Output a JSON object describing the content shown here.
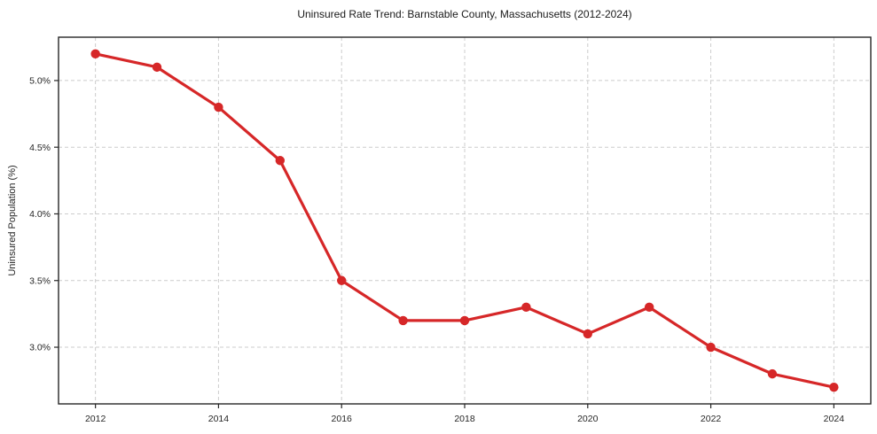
{
  "chart_data": {
    "type": "line",
    "title": "Uninsured Rate Trend: Barnstable County, Massachusetts (2012-2024)",
    "xlabel": "",
    "ylabel": "Uninsured Population (%)",
    "x": [
      2012,
      2013,
      2014,
      2015,
      2016,
      2017,
      2018,
      2019,
      2020,
      2021,
      2022,
      2023,
      2024
    ],
    "values": [
      5.2,
      5.1,
      4.8,
      4.4,
      3.5,
      3.2,
      3.2,
      3.3,
      3.1,
      3.3,
      3.0,
      2.8,
      2.7
    ],
    "xlim": [
      2011.4,
      2024.6
    ],
    "ylim": [
      2.575,
      5.325
    ],
    "x_ticks": {
      "values": [
        2012,
        2014,
        2016,
        2018,
        2020,
        2022,
        2024
      ],
      "labels": [
        "2012",
        "2014",
        "2016",
        "2018",
        "2020",
        "2022",
        "2024"
      ]
    },
    "y_ticks": {
      "values": [
        3.0,
        3.5,
        4.0,
        4.5,
        5.0
      ],
      "labels": [
        "3.0%",
        "3.5%",
        "4.0%",
        "4.5%",
        "5.0%"
      ]
    },
    "grid": {
      "visible": true,
      "style": "dashed",
      "axes": "both"
    },
    "legend": {
      "visible": false
    },
    "colors": {
      "line": "#d62728",
      "marker": "#d62728",
      "grid": "#cccccc",
      "spine": "#262626",
      "text": "#262626",
      "title_text": "#1a1a1a",
      "background": "#ffffff"
    }
  }
}
